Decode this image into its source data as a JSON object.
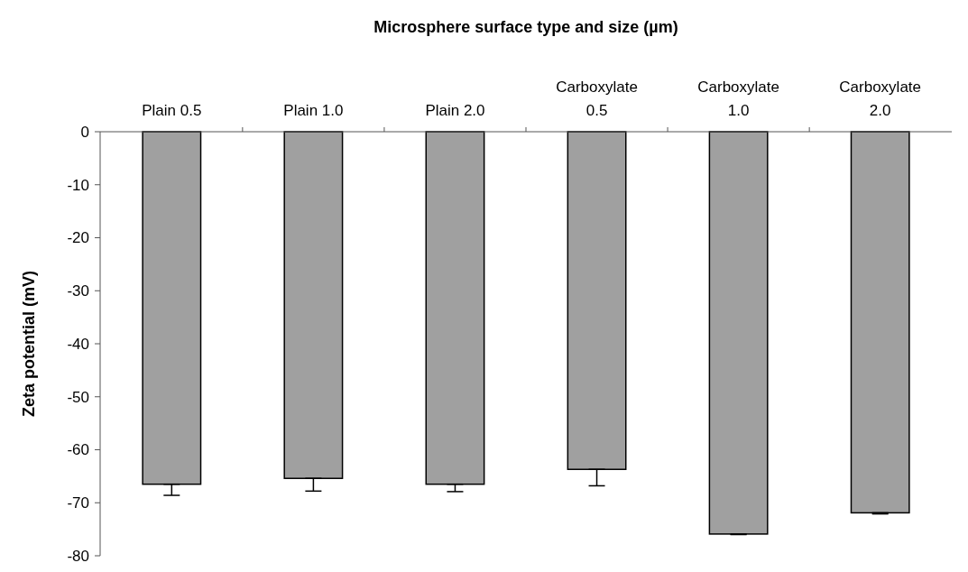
{
  "chart_data": {
    "type": "bar",
    "xlabel": "Microsphere surface type and size (µm)",
    "ylabel": "Zeta potential (mV)",
    "categories": [
      "Plain 0.5",
      "Plain 1.0",
      "Plain 2.0",
      "Carboxylate 0.5",
      "Carboxylate 1.0",
      "Carboxylate 2.0"
    ],
    "values": [
      -66.5,
      -65.4,
      -66.5,
      -63.7,
      -75.9,
      -71.9
    ],
    "errors": [
      [
        -68.6,
        -66.5
      ],
      [
        -67.8,
        -65.4
      ],
      [
        -67.9,
        -66.5
      ],
      [
        -66.8,
        -63.7
      ],
      [
        -76.0,
        -75.9
      ],
      [
        -72.1,
        -71.9
      ]
    ],
    "color": "#a0a0a0",
    "ylim": [
      -80,
      0
    ],
    "yticks": [
      0,
      -10,
      -20,
      -30,
      -40,
      -50,
      -60,
      -70,
      -80
    ],
    "grid": false
  }
}
